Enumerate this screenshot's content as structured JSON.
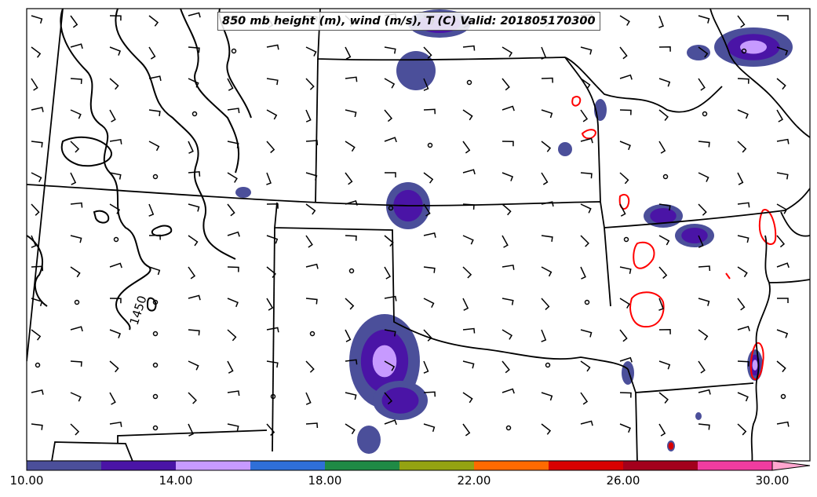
{
  "title": "850 mb height (m), wind (m/s), T (C) Valid: 201805170300",
  "contour_label": "1450",
  "colorbar": {
    "tick_labels": [
      "10.00",
      "14.00",
      "18.00",
      "22.00",
      "26.00",
      "30.00"
    ],
    "colors": [
      "#4b4f9a",
      "#4a14a6",
      "#c79aff",
      "#2f6fd8",
      "#1f8a45",
      "#94a312",
      "#ff6a00",
      "#d80000",
      "#a3001c",
      "#f03ca0",
      "#ffa6cf"
    ]
  },
  "colors": {
    "state_borders": "#000000",
    "height_contour": "#000000",
    "temperature_contour": "#ff0000",
    "wind_barbs": "#000000"
  }
}
